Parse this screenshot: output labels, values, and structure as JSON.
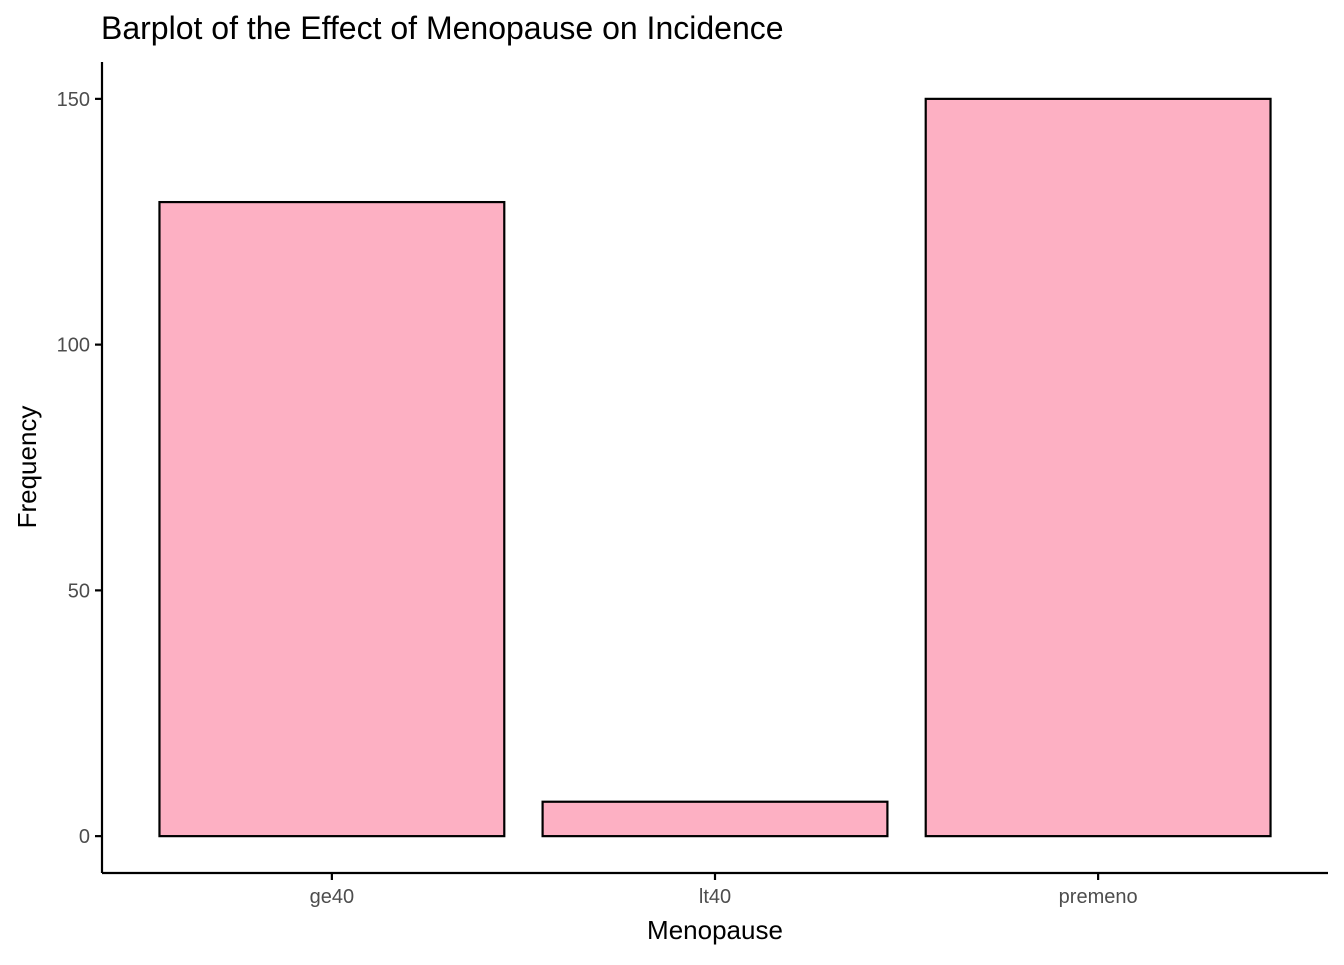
{
  "chart_data": {
    "type": "bar",
    "title": "Barplot of the Effect of Menopause on Incidence",
    "xlabel": "Menopause",
    "ylabel": "Frequency",
    "categories": [
      "ge40",
      "lt40",
      "premeno"
    ],
    "values": [
      129,
      7,
      150
    ],
    "ylim": [
      -7.5,
      157.5
    ],
    "yticks": [
      0,
      50,
      100,
      150
    ],
    "grid": false,
    "legend": "none",
    "bar_fill": "#FDB0C3",
    "bar_outline": "#000000"
  }
}
